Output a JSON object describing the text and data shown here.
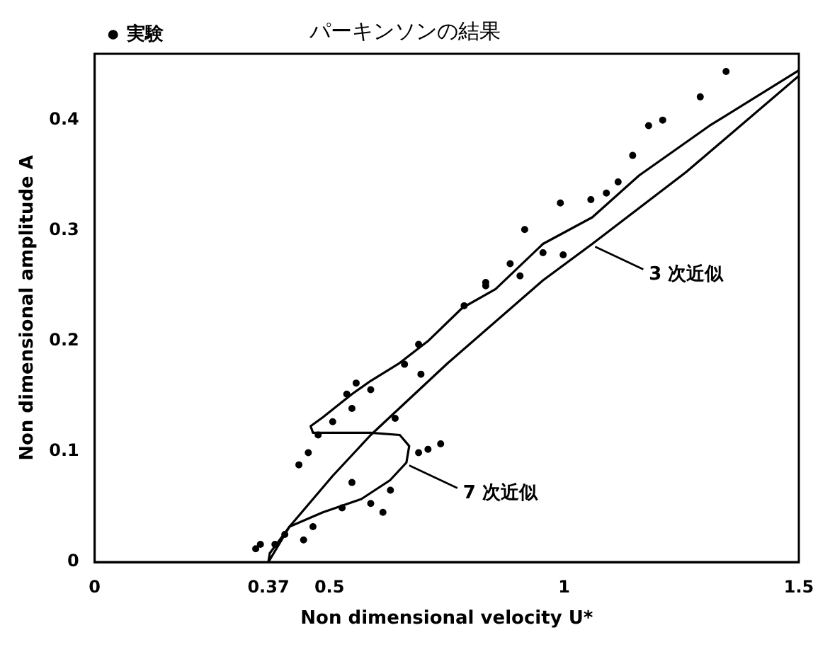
{
  "chart_data": {
    "type": "scatter",
    "title": "パーキンソンの結果",
    "xlabel": "Non dimensional velocity U*",
    "ylabel": "Non dimensional amplitude A",
    "xlim": [
      0,
      1.5
    ],
    "xticks": [
      0,
      0.37,
      0.5,
      1,
      1.5
    ],
    "ylim": [
      0,
      0.46
    ],
    "yticks": [
      0,
      0.1,
      0.2,
      0.3,
      0.4
    ],
    "grid": false,
    "legend": "top left",
    "series": [
      {
        "name": "実験",
        "type": "scatter",
        "marker": "circle",
        "color": "#000000",
        "x": [
          0.343,
          0.353,
          0.384,
          0.405,
          0.445,
          0.465,
          0.527,
          0.588,
          0.548,
          0.614,
          0.63,
          0.69,
          0.71,
          0.737,
          0.435,
          0.455,
          0.476,
          0.507,
          0.548,
          0.537,
          0.557,
          0.588,
          0.64,
          0.66,
          0.69,
          0.695,
          0.787,
          0.833,
          0.833,
          0.885,
          0.906,
          0.916,
          0.955,
          0.998,
          0.992,
          1.057,
          1.09,
          1.115,
          1.146,
          1.18,
          1.21,
          1.29,
          1.345
        ],
        "values": [
          0.012,
          0.016,
          0.016,
          0.025,
          0.02,
          0.032,
          0.049,
          0.053,
          0.072,
          0.045,
          0.065,
          0.099,
          0.102,
          0.107,
          0.088,
          0.099,
          0.115,
          0.127,
          0.139,
          0.152,
          0.162,
          0.156,
          0.13,
          0.179,
          0.197,
          0.17,
          0.232,
          0.25,
          0.253,
          0.27,
          0.259,
          0.301,
          0.28,
          0.278,
          0.325,
          0.328,
          0.334,
          0.344,
          0.368,
          0.395,
          0.4,
          0.421,
          0.444
        ]
      },
      {
        "type": "line",
        "marker": "none",
        "line_style": "solid",
        "color": "#000000",
        "x": [
          0.37,
          0.373,
          0.415,
          0.507,
          0.588,
          0.752,
          0.955,
          1.06,
          1.26,
          1.5
        ],
        "values": [
          0,
          0.008,
          0.032,
          0.078,
          0.115,
          0.18,
          0.255,
          0.288,
          0.353,
          0.44
        ]
      },
      {
        "type": "line",
        "marker": "none",
        "line_style": "solid",
        "color": "#000000",
        "x": [
          0.37,
          0.415,
          0.486,
          0.568,
          0.629,
          0.664,
          0.67,
          0.65,
          0.588,
          0.507,
          0.465,
          0.46,
          0.486,
          0.548,
          0.588,
          0.649,
          0.71,
          0.783,
          0.854,
          0.955,
          1.06,
          1.16,
          1.31,
          1.5
        ],
        "values": [
          0,
          0.032,
          0.045,
          0.057,
          0.074,
          0.09,
          0.105,
          0.115,
          0.117,
          0.117,
          0.117,
          0.123,
          0.131,
          0.152,
          0.164,
          0.18,
          0.2,
          0.23,
          0.247,
          0.288,
          0.312,
          0.35,
          0.395,
          0.445
        ]
      }
    ],
    "annotations": [
      {
        "text": "3 次近似",
        "x": 1.06,
        "y": 0.288
      },
      {
        "text": "7 次近似",
        "x": 0.664,
        "y": 0.09
      }
    ]
  }
}
